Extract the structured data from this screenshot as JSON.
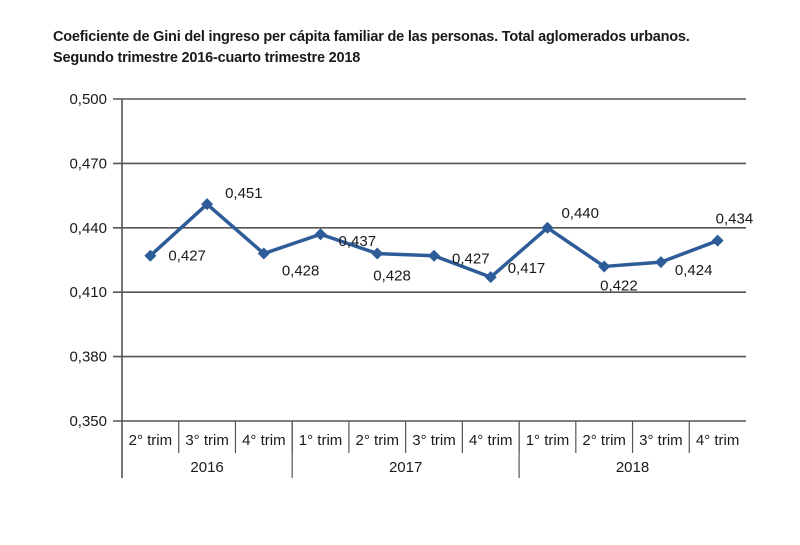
{
  "chart_data": {
    "type": "line",
    "title": "Coeficiente de Gini del ingreso per cápita familiar de las personas. Total aglomerados urbanos.",
    "subtitle": "Segundo trimestre 2016-cuarto trimestre 2018",
    "ylim": [
      0.35,
      0.5
    ],
    "yticks": [
      "0,350",
      "0,380",
      "0,410",
      "0,440",
      "0,470",
      "0,500"
    ],
    "ytick_values": [
      0.35,
      0.38,
      0.41,
      0.44,
      0.47,
      0.5
    ],
    "categories": [
      "2° trim",
      "3° trim",
      "4° trim",
      "1° trim",
      "2° trim",
      "3° trim",
      "4° trim",
      "1° trim",
      "2° trim",
      "3° trim",
      "4° trim"
    ],
    "years": [
      {
        "label": "2016",
        "span": 3
      },
      {
        "label": "2017",
        "span": 4
      },
      {
        "label": "2018",
        "span": 4
      }
    ],
    "series": [
      {
        "values": [
          0.427,
          0.451,
          0.428,
          0.437,
          0.428,
          0.427,
          0.417,
          0.44,
          0.422,
          0.424,
          0.434
        ],
        "labels": [
          "0,427",
          "0,451",
          "0,428",
          "0,437",
          "0,428",
          "0,427",
          "0,417",
          "0,440",
          "0,422",
          "0,424",
          "0,434"
        ],
        "color": "#2e5c99"
      }
    ],
    "grid": true,
    "gridline_color": "#555555"
  }
}
